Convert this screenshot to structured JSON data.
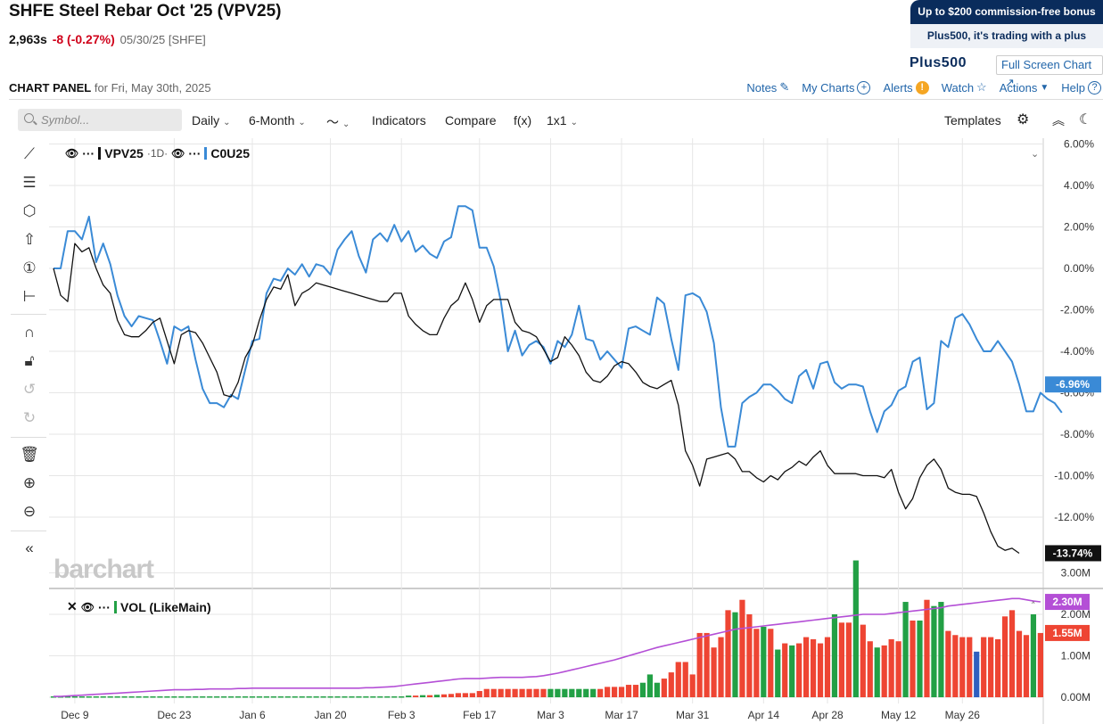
{
  "header": {
    "title": "SHFE Steel Rebar Oct '25 (VPV25)",
    "price": "2,963s",
    "change": "-8 (-0.27%)",
    "meta": "05/30/25 [SHFE]"
  },
  "promo": {
    "top": "Up to $200 commission-free bonus",
    "bottom": "Plus500, it's trading with a plus",
    "logo": "Plus500"
  },
  "fullscreen_label": "Full Screen Chart",
  "panel": {
    "title": "CHART PANEL",
    "subtitle": "for Fri, May 30th, 2025",
    "links": [
      "Notes",
      "My Charts",
      "Alerts",
      "Watch",
      "Actions",
      "Help"
    ]
  },
  "toolbar": {
    "search_placeholder": "Symbol...",
    "interval": "Daily",
    "range": "6-Month",
    "indicators": "Indicators",
    "compare": "Compare",
    "fx": "f(x)",
    "layout": "1x1",
    "templates": "Templates"
  },
  "legend": {
    "main_symbol": "VPV25",
    "main_interval": "·1D·",
    "compare_symbol": "C0U25",
    "volume_label": "VOL (LikeMain)"
  },
  "watermark": "barchart",
  "colors": {
    "main_line": "#111111",
    "compare_line": "#3a8ad6",
    "volume_up": "#22a045",
    "volume_down": "#ee4533",
    "volume_neutral": "#2f5fbf",
    "volume_ma": "#b44fd6"
  },
  "chart_data": [
    {
      "type": "line",
      "y_unit": "%",
      "ylim": [
        -14,
        6.5
      ],
      "y_ticks": [
        "6.00%",
        "4.00%",
        "2.00%",
        "0.00%",
        "-2.00%",
        "-4.00%",
        "-6.00%",
        "-8.00%",
        "-10.00%",
        "-12.00%"
      ],
      "x_labels": [
        "Dec 9",
        "Dec 23",
        "Jan 6",
        "Jan 20",
        "Feb 3",
        "Feb 17",
        "Mar 3",
        "Mar 17",
        "Mar 31",
        "Apr 14",
        "Apr 28",
        "May 12",
        "May 26"
      ],
      "last_values": [
        "-6.96%",
        "-13.74%"
      ],
      "series": [
        {
          "name": "VPV25",
          "values": [
            0,
            -1.3,
            -1.6,
            1.2,
            0.8,
            1.0,
            0,
            -0.8,
            -1.2,
            -2.5,
            -3.2,
            -3.3,
            -3.3,
            -3.0,
            -2.6,
            -2.4,
            -3.5,
            -4.6,
            -3.2,
            -3.0,
            -3.1,
            -3.6,
            -4.3,
            -5.0,
            -6.1,
            -6.2,
            -5.5,
            -4.3,
            -3.7,
            -2.5,
            -1.5,
            -0.9,
            -1.0,
            -0.3,
            -1.8,
            -1.2,
            -1.0,
            -0.7,
            -0.8,
            -0.9,
            -1.0,
            -1.1,
            -1.2,
            -1.3,
            -1.4,
            -1.5,
            -1.6,
            -1.6,
            -1.2,
            -1.2,
            -2.3,
            -2.7,
            -3.0,
            -3.2,
            -3.2,
            -2.4,
            -1.8,
            -1.5,
            -0.7,
            -1.5,
            -2.6,
            -1.8,
            -1.5,
            -1.5,
            -1.5,
            -2.6,
            -3.0,
            -3.1,
            -3.3,
            -3.9,
            -4.5,
            -4.3,
            -3.3,
            -3.7,
            -4.2,
            -5.0,
            -5.4,
            -5.5,
            -5.2,
            -4.7,
            -4.5,
            -4.6,
            -5.0,
            -5.5,
            -5.7,
            -5.8,
            -5.6,
            -5.4,
            -6.6,
            -8.8,
            -9.5,
            -10.5,
            -9.2,
            -9.1,
            -9.0,
            -8.9,
            -9.2,
            -9.8,
            -9.8,
            -10.1,
            -10.3,
            -10.0,
            -10.2,
            -9.8,
            -9.6,
            -9.3,
            -9.5,
            -9.1,
            -8.8,
            -9.5,
            -9.9,
            -9.9,
            -9.9,
            -9.9,
            -10.0,
            -10.0,
            -10.0,
            -10.1,
            -9.7,
            -10.8,
            -11.6,
            -11.1,
            -10.1,
            -9.5,
            -9.2,
            -9.7,
            -10.6,
            -10.8,
            -10.9,
            -10.9,
            -11.0,
            -11.8,
            -12.7,
            -13.4,
            -13.6,
            -13.5,
            -13.74
          ]
        },
        {
          "name": "C0U25",
          "values": [
            0,
            0,
            1.8,
            1.8,
            1.4,
            2.5,
            0.3,
            1.2,
            0.2,
            -1.3,
            -2.3,
            -2.8,
            -2.3,
            -2.4,
            -2.5,
            -3.5,
            -4.6,
            -2.8,
            -3.0,
            -2.8,
            -4.4,
            -5.8,
            -6.5,
            -6.5,
            -6.7,
            -6.1,
            -6.3,
            -4.9,
            -3.5,
            -3.4,
            -1.2,
            -0.5,
            -0.6,
            0,
            -0.3,
            0.2,
            -0.4,
            0.2,
            0.1,
            -0.3,
            0.9,
            1.4,
            1.8,
            0.6,
            -0.2,
            1.4,
            1.7,
            1.3,
            2.1,
            1.3,
            1.8,
            0.8,
            1.1,
            0.7,
            0.5,
            1.3,
            1.5,
            3.0,
            3.0,
            2.8,
            1.0,
            1.0,
            0.1,
            -1.6,
            -4.0,
            -3.0,
            -4.2,
            -3.7,
            -3.5,
            -3.8,
            -4.6,
            -3.5,
            -3.8,
            -3.2,
            -1.8,
            -3.4,
            -3.5,
            -4.4,
            -4.0,
            -4.4,
            -4.8,
            -2.9,
            -2.8,
            -3.0,
            -3.2,
            -1.4,
            -1.7,
            -3.4,
            -4.9,
            -1.3,
            -1.2,
            -1.4,
            -2.1,
            -3.6,
            -6.7,
            -8.6,
            -8.6,
            -6.5,
            -6.2,
            -6.0,
            -5.6,
            -5.6,
            -5.9,
            -6.3,
            -6.5,
            -5.2,
            -4.9,
            -5.8,
            -4.6,
            -4.5,
            -5.5,
            -5.8,
            -5.6,
            -5.6,
            -5.7,
            -6.9,
            -7.9,
            -6.9,
            -6.6,
            -5.9,
            -5.7,
            -4.5,
            -4.3,
            -6.8,
            -6.5,
            -3.5,
            -3.8,
            -2.4,
            -2.2,
            -2.7,
            -3.4,
            -4.0,
            -4.0,
            -3.5,
            -4.0,
            -4.5,
            -5.6,
            -6.9,
            -6.9,
            -6.0,
            -6.3,
            -6.5,
            -6.96
          ]
        }
      ]
    },
    {
      "type": "bar",
      "title": "VOL (LikeMain)",
      "ylim": [
        0,
        3.4
      ],
      "y_unit": "M",
      "y_ticks": [
        "3.00M",
        "2.00M",
        "1.00M",
        "0.00M"
      ],
      "last_values": [
        "2.30M",
        "1.55M"
      ],
      "series": [
        {
          "name": "VOL",
          "values": [
            0.02,
            0.02,
            0.02,
            0.02,
            0.02,
            0.02,
            0.02,
            0.02,
            0.02,
            0.02,
            0.02,
            0.02,
            0.02,
            0.02,
            0.02,
            0.02,
            0.02,
            0.02,
            0.02,
            0.02,
            0.02,
            0.02,
            0.02,
            0.02,
            0.02,
            0.02,
            0.02,
            0.02,
            0.02,
            0.02,
            0.02,
            0.02,
            0.02,
            0.02,
            0.02,
            0.02,
            0.02,
            0.02,
            0.03,
            0.03,
            0.03,
            0.03,
            0.03,
            0.03,
            0.03,
            0.03,
            0.03,
            0.03,
            0.03,
            0.03,
            0.04,
            0.04,
            0.05,
            0.05,
            0.06,
            0.07,
            0.08,
            0.1,
            0.1,
            0.1,
            0.15,
            0.2,
            0.2,
            0.2,
            0.2,
            0.2,
            0.2,
            0.2,
            0.2,
            0.2,
            0.2,
            0.2,
            0.2,
            0.2,
            0.2,
            0.2,
            0.2,
            0.2,
            0.25,
            0.25,
            0.25,
            0.3,
            0.3,
            0.35,
            0.55,
            0.35,
            0.45,
            0.6,
            0.85,
            0.85,
            0.55,
            1.55,
            1.55,
            1.2,
            1.45,
            2.1,
            2.05,
            2.35,
            2.0,
            1.65,
            1.7,
            1.65,
            1.15,
            1.3,
            1.25,
            1.3,
            1.45,
            1.4,
            1.3,
            1.45,
            2.0,
            1.8,
            1.8,
            3.3,
            1.75,
            1.35,
            1.2,
            1.25,
            1.4,
            1.35,
            2.3,
            1.85,
            1.85,
            2.35,
            2.2,
            2.3,
            1.6,
            1.5,
            1.45,
            1.45,
            1.1,
            1.45,
            1.45,
            1.4,
            1.95,
            2.1,
            1.6,
            1.5,
            2.0,
            1.55
          ],
          "directions": [
            "n",
            "n",
            "n",
            "n",
            "n",
            "n",
            "n",
            "n",
            "n",
            "n",
            "n",
            "n",
            "n",
            "n",
            "n",
            "n",
            "n",
            "n",
            "n",
            "n",
            "n",
            "n",
            "n",
            "n",
            "n",
            "n",
            "n",
            "n",
            "n",
            "n",
            "n",
            "n",
            "n",
            "n",
            "n",
            "n",
            "n",
            "n",
            "n",
            "n",
            "n",
            "n",
            "n",
            "n",
            "n",
            "n",
            "n",
            "n",
            "n",
            "n",
            "u",
            "d",
            "u",
            "d",
            "u",
            "d",
            "d",
            "d",
            "d",
            "d",
            "d",
            "d",
            "d",
            "d",
            "d",
            "d",
            "d",
            "d",
            "d",
            "d",
            "u",
            "u",
            "u",
            "u",
            "u",
            "u",
            "u",
            "d",
            "d",
            "d",
            "d",
            "d",
            "d",
            "u",
            "u",
            "u",
            "d",
            "d",
            "d",
            "d",
            "d",
            "d",
            "d",
            "d",
            "d",
            "d",
            "u",
            "d",
            "d",
            "d",
            "u",
            "d",
            "u",
            "d",
            "u",
            "d",
            "d",
            "d",
            "d",
            "d",
            "u",
            "d",
            "d",
            "u",
            "d",
            "d",
            "u",
            "d",
            "d",
            "d",
            "u",
            "d",
            "u",
            "d",
            "u",
            "u",
            "d",
            "d",
            "d",
            "d",
            "b",
            "d",
            "d",
            "d",
            "d",
            "d",
            "d",
            "d",
            "u",
            "d",
            "d"
          ]
        },
        {
          "name": "VOL MA",
          "values": [
            0.02,
            0.02,
            0.03,
            0.04,
            0.05,
            0.06,
            0.07,
            0.08,
            0.09,
            0.1,
            0.11,
            0.12,
            0.13,
            0.14,
            0.15,
            0.16,
            0.17,
            0.18,
            0.18,
            0.18,
            0.19,
            0.19,
            0.2,
            0.2,
            0.2,
            0.2,
            0.21,
            0.21,
            0.22,
            0.22,
            0.22,
            0.22,
            0.22,
            0.22,
            0.22,
            0.22,
            0.22,
            0.22,
            0.22,
            0.22,
            0.22,
            0.22,
            0.22,
            0.22,
            0.23,
            0.23,
            0.24,
            0.25,
            0.26,
            0.28,
            0.3,
            0.32,
            0.34,
            0.36,
            0.38,
            0.4,
            0.42,
            0.44,
            0.45,
            0.45,
            0.45,
            0.46,
            0.47,
            0.48,
            0.48,
            0.48,
            0.48,
            0.49,
            0.5,
            0.52,
            0.55,
            0.58,
            0.62,
            0.66,
            0.7,
            0.74,
            0.78,
            0.82,
            0.86,
            0.9,
            0.95,
            1.0,
            1.05,
            1.1,
            1.15,
            1.2,
            1.24,
            1.28,
            1.32,
            1.36,
            1.4,
            1.44,
            1.48,
            1.52,
            1.56,
            1.6,
            1.64,
            1.66,
            1.68,
            1.7,
            1.72,
            1.74,
            1.76,
            1.78,
            1.8,
            1.82,
            1.84,
            1.86,
            1.88,
            1.9,
            1.92,
            1.94,
            1.96,
            1.98,
            2.0,
            2.0,
            2.0,
            2.0,
            2.02,
            2.04,
            2.06,
            2.08,
            2.1,
            2.12,
            2.14,
            2.16,
            2.2,
            2.22,
            2.24,
            2.26,
            2.28,
            2.3,
            2.32,
            2.34,
            2.36,
            2.38,
            2.38,
            2.35,
            2.32,
            2.3
          ]
        }
      ]
    }
  ]
}
